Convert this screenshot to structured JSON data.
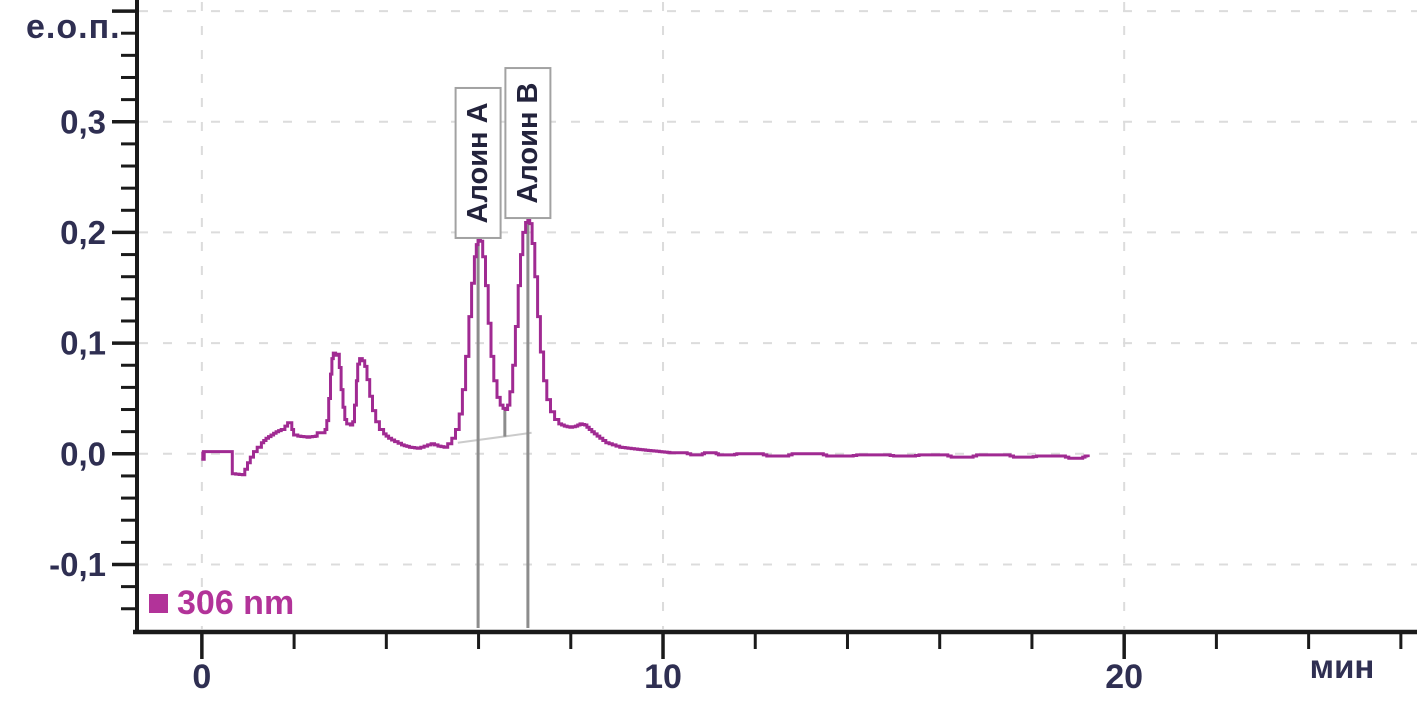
{
  "colors": {
    "background": "#FFFFFF",
    "trace": "#A02A92",
    "legend": "#B23399",
    "axis": "#1A1A1A",
    "tick_text": "#2F2F52",
    "grid": "#DCDCDC",
    "drop_line": "#8C8C8C",
    "integration_line": "#CBCBCB",
    "peak_text": "#23233C",
    "peak_box_border": "#A2A2A2",
    "peak_box_fill": "#FFFFFF"
  },
  "chart_data": {
    "type": "line",
    "title": "",
    "subtitle": "",
    "xlabel": "мин",
    "ylabel": "е.о.п.",
    "xlim": [
      -1.45,
      26.35
    ],
    "ylim": [
      -0.161,
      0.41
    ],
    "grid": "dashed lines at major ticks, horizontal and vertical",
    "legend_position": "bottom-left",
    "x_major_ticks": [
      0,
      10,
      20
    ],
    "x_tick_labels": [
      {
        "value": 0,
        "label": "0"
      },
      {
        "value": 10,
        "label": "10"
      },
      {
        "value": 20,
        "label": "20"
      }
    ],
    "x_minor_step": 2,
    "y_major_ticks": [
      0.4,
      0.3,
      0.2,
      0.1,
      0.0,
      -0.1
    ],
    "y_tick_labels": [
      {
        "value": 0.3,
        "label": "0,3"
      },
      {
        "value": 0.2,
        "label": "0,2"
      },
      {
        "value": 0.1,
        "label": "0,1"
      },
      {
        "value": 0.0,
        "label": "0,0"
      },
      {
        "value": -0.1,
        "label": "-0,1"
      }
    ],
    "y_minor_step": 0.02,
    "legend": [
      {
        "label": "306 nm",
        "color": "#B23399"
      }
    ],
    "peaks": [
      {
        "name": "Алоин А",
        "rt_min": 5.99,
        "height_eop": 0.195
      },
      {
        "name": "Алоин В",
        "rt_min": 7.07,
        "height_eop": 0.213
      }
    ],
    "valley_marker": {
      "t": 6.57,
      "from": 0.04,
      "to": 0.0155
    },
    "integration_baseline": {
      "from": [
        5.55,
        0.01
      ],
      "to": [
        7.15,
        0.019
      ]
    },
    "series": [
      {
        "name": "306 nm",
        "color": "#A02A92",
        "points": [
          [
            0.0,
            0.002
          ],
          [
            0.02,
            -0.005
          ],
          [
            0.05,
            0.002
          ],
          [
            0.63,
            0.002
          ],
          [
            0.66,
            -0.018
          ],
          [
            0.88,
            -0.019
          ],
          [
            0.93,
            -0.014
          ],
          [
            0.99,
            -0.008
          ],
          [
            1.05,
            -0.003
          ],
          [
            1.12,
            0.002
          ],
          [
            1.2,
            0.006
          ],
          [
            1.29,
            0.01
          ],
          [
            1.39,
            0.014
          ],
          [
            1.5,
            0.017
          ],
          [
            1.61,
            0.02
          ],
          [
            1.72,
            0.022
          ],
          [
            1.8,
            0.025
          ],
          [
            1.86,
            0.028
          ],
          [
            1.92,
            0.028
          ],
          [
            1.95,
            0.022
          ],
          [
            1.99,
            0.017
          ],
          [
            2.08,
            0.016
          ],
          [
            2.28,
            0.015
          ],
          [
            2.46,
            0.016
          ],
          [
            2.5,
            0.019
          ],
          [
            2.62,
            0.019
          ],
          [
            2.67,
            0.022
          ],
          [
            2.71,
            0.03
          ],
          [
            2.75,
            0.05
          ],
          [
            2.79,
            0.072
          ],
          [
            2.82,
            0.086
          ],
          [
            2.85,
            0.091
          ],
          [
            2.9,
            0.089
          ],
          [
            2.94,
            0.09
          ],
          [
            2.98,
            0.078
          ],
          [
            3.02,
            0.058
          ],
          [
            3.06,
            0.042
          ],
          [
            3.1,
            0.031
          ],
          [
            3.14,
            0.027
          ],
          [
            3.22,
            0.026
          ],
          [
            3.27,
            0.029
          ],
          [
            3.31,
            0.044
          ],
          [
            3.35,
            0.066
          ],
          [
            3.38,
            0.081
          ],
          [
            3.42,
            0.086
          ],
          [
            3.48,
            0.084
          ],
          [
            3.53,
            0.079
          ],
          [
            3.58,
            0.067
          ],
          [
            3.64,
            0.052
          ],
          [
            3.7,
            0.039
          ],
          [
            3.77,
            0.029
          ],
          [
            3.85,
            0.022
          ],
          [
            3.94,
            0.018
          ],
          [
            4.05,
            0.014
          ],
          [
            4.18,
            0.011
          ],
          [
            4.33,
            0.008
          ],
          [
            4.5,
            0.006
          ],
          [
            4.67,
            0.005
          ],
          [
            4.82,
            0.007
          ],
          [
            4.97,
            0.009
          ],
          [
            5.12,
            0.007
          ],
          [
            5.25,
            0.006
          ],
          [
            5.33,
            0.009
          ],
          [
            5.42,
            0.014
          ],
          [
            5.5,
            0.022
          ],
          [
            5.58,
            0.036
          ],
          [
            5.65,
            0.058
          ],
          [
            5.72,
            0.088
          ],
          [
            5.79,
            0.124
          ],
          [
            5.85,
            0.154
          ],
          [
            5.91,
            0.178
          ],
          [
            5.95,
            0.189
          ],
          [
            5.99,
            0.195
          ],
          [
            6.04,
            0.192
          ],
          [
            6.09,
            0.178
          ],
          [
            6.15,
            0.152
          ],
          [
            6.21,
            0.118
          ],
          [
            6.27,
            0.088
          ],
          [
            6.33,
            0.066
          ],
          [
            6.4,
            0.051
          ],
          [
            6.47,
            0.044
          ],
          [
            6.53,
            0.041
          ],
          [
            6.58,
            0.04
          ],
          [
            6.63,
            0.044
          ],
          [
            6.68,
            0.056
          ],
          [
            6.74,
            0.08
          ],
          [
            6.8,
            0.115
          ],
          [
            6.86,
            0.152
          ],
          [
            6.91,
            0.18
          ],
          [
            6.96,
            0.2
          ],
          [
            7.02,
            0.209
          ],
          [
            7.07,
            0.213
          ],
          [
            7.11,
            0.208
          ],
          [
            7.16,
            0.19
          ],
          [
            7.22,
            0.16
          ],
          [
            7.28,
            0.124
          ],
          [
            7.34,
            0.092
          ],
          [
            7.41,
            0.066
          ],
          [
            7.48,
            0.049
          ],
          [
            7.56,
            0.038
          ],
          [
            7.65,
            0.031
          ],
          [
            7.74,
            0.027
          ],
          [
            7.86,
            0.025
          ],
          [
            7.98,
            0.024
          ],
          [
            8.1,
            0.025
          ],
          [
            8.2,
            0.027
          ],
          [
            8.3,
            0.026
          ],
          [
            8.4,
            0.022
          ],
          [
            8.51,
            0.018
          ],
          [
            8.63,
            0.014
          ],
          [
            8.76,
            0.01
          ],
          [
            8.9,
            0.008
          ],
          [
            9.06,
            0.006
          ],
          [
            9.24,
            0.005
          ],
          [
            9.45,
            0.004
          ],
          [
            9.68,
            0.003
          ],
          [
            9.92,
            0.002
          ],
          [
            10.15,
            0.001
          ],
          [
            10.45,
            0.001
          ],
          [
            10.6,
            -0.001
          ],
          [
            10.8,
            -0.001
          ],
          [
            10.9,
            0.001
          ],
          [
            11.1,
            0.001
          ],
          [
            11.2,
            -0.001
          ],
          [
            11.5,
            -0.001
          ],
          [
            11.6,
            0.0
          ],
          [
            12.1,
            0.0
          ],
          [
            12.25,
            -0.002
          ],
          [
            12.65,
            -0.002
          ],
          [
            12.8,
            0.0
          ],
          [
            13.4,
            0.0
          ],
          [
            13.55,
            -0.002
          ],
          [
            14.05,
            -0.002
          ],
          [
            14.2,
            -0.001
          ],
          [
            14.85,
            -0.001
          ],
          [
            15.0,
            -0.002
          ],
          [
            15.4,
            -0.002
          ],
          [
            15.55,
            -0.001
          ],
          [
            16.1,
            -0.001
          ],
          [
            16.25,
            -0.003
          ],
          [
            16.65,
            -0.003
          ],
          [
            16.8,
            -0.001
          ],
          [
            17.45,
            -0.001
          ],
          [
            17.6,
            -0.003
          ],
          [
            17.95,
            -0.003
          ],
          [
            18.1,
            -0.002
          ],
          [
            18.65,
            -0.002
          ],
          [
            18.8,
            -0.004
          ],
          [
            19.05,
            -0.004
          ],
          [
            19.15,
            -0.002
          ],
          [
            19.22,
            -0.003
          ]
        ]
      }
    ]
  }
}
